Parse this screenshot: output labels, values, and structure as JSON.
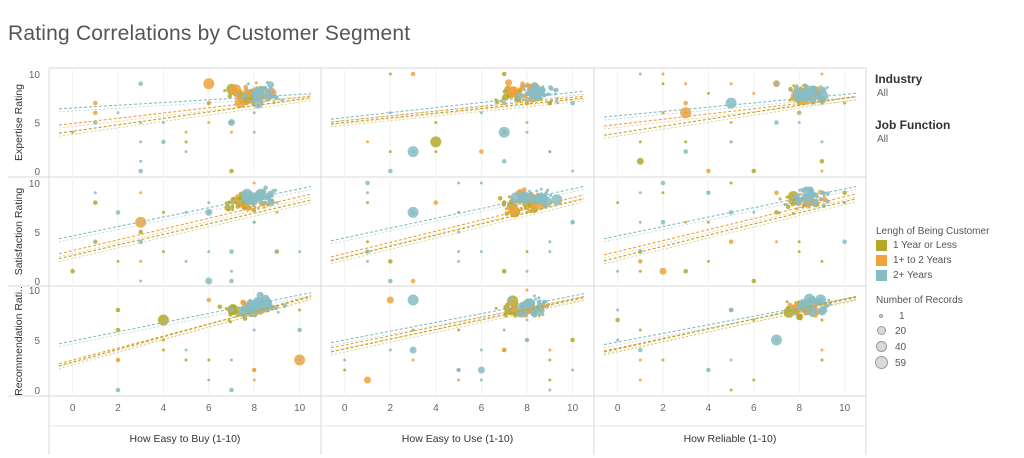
{
  "title": "Rating Correlations by Customer Segment",
  "filters": [
    {
      "label": "Industry",
      "value": "All"
    },
    {
      "label": "Job Function",
      "value": "All"
    }
  ],
  "legend_color": {
    "title": "Lengh of Being Customer",
    "items": [
      {
        "label": "1 Year or Less",
        "color": "#b5a82a"
      },
      {
        "label": "1+ to 2 Years",
        "color": "#f0a23b"
      },
      {
        "label": "2+ Years",
        "color": "#86bcc4"
      }
    ]
  },
  "legend_size": {
    "title": "Number of Records",
    "items": [
      {
        "label": "1",
        "value": 1
      },
      {
        "label": "20",
        "value": 20
      },
      {
        "label": "40",
        "value": 40
      },
      {
        "label": "59",
        "value": 59
      }
    ]
  },
  "chart_data": {
    "type": "scatter",
    "columns": [
      "How Easy to Buy (1-10)",
      "How Easy to Use (1-10)",
      "How Reliable (1-10)"
    ],
    "rows": [
      "Expertise Rating",
      "Satisfaction Rating",
      "Recommendation Rati.."
    ],
    "x_ticks": [
      "0",
      "2",
      "4",
      "6",
      "8",
      "10"
    ],
    "y_ticks": [
      "0",
      "5",
      "10"
    ],
    "xlim": [
      -0.6,
      10.5
    ],
    "ylim": [
      -0.3,
      10.3
    ],
    "series": [
      "1 Year or Less",
      "1+ to 2 Years",
      "2+ Years"
    ],
    "trend_lines": [
      [
        {
          "series": "2+ Years",
          "y_at_0": 6.5,
          "y_at_10": 7.9
        },
        {
          "series": "1+ to 2 Years",
          "y_at_0": 4.9,
          "y_at_10": 7.6
        },
        {
          "series": "1 Year or Less",
          "y_at_0": 4.1,
          "y_at_10": 7.4
        }
      ],
      [
        {
          "series": "2+ Years",
          "y_at_0": 5.5,
          "y_at_10": 8.1
        },
        {
          "series": "1+ to 2 Years",
          "y_at_0": 5.2,
          "y_at_10": 7.6
        },
        {
          "series": "1 Year or Less",
          "y_at_0": 5.0,
          "y_at_10": 7.4
        }
      ],
      [
        {
          "series": "2+ Years",
          "y_at_0": 5.7,
          "y_at_10": 7.9
        },
        {
          "series": "1+ to 2 Years",
          "y_at_0": 4.8,
          "y_at_10": 7.5
        },
        {
          "series": "1 Year or Less",
          "y_at_0": 3.9,
          "y_at_10": 7.5
        }
      ],
      [
        {
          "series": "2+ Years",
          "y_at_0": 4.6,
          "y_at_10": 9.4
        },
        {
          "series": "1+ to 2 Years",
          "y_at_0": 3.1,
          "y_at_10": 8.6
        },
        {
          "series": "1 Year or Less",
          "y_at_0": 2.6,
          "y_at_10": 8.0
        }
      ],
      [
        {
          "series": "2+ Years",
          "y_at_0": 4.4,
          "y_at_10": 9.4
        },
        {
          "series": "1+ to 2 Years",
          "y_at_0": 2.8,
          "y_at_10": 8.5
        },
        {
          "series": "1 Year or Less",
          "y_at_0": 2.4,
          "y_at_10": 8.1
        }
      ],
      [
        {
          "series": "2+ Years",
          "y_at_0": 4.6,
          "y_at_10": 9.4
        },
        {
          "series": "1+ to 2 Years",
          "y_at_0": 3.0,
          "y_at_10": 8.6
        },
        {
          "series": "1 Year or Less",
          "y_at_0": 2.4,
          "y_at_10": 8.1
        }
      ],
      [
        {
          "series": "2+ Years",
          "y_at_0": 4.9,
          "y_at_10": 9.5
        },
        {
          "series": "1+ to 2 Years",
          "y_at_0": 3.0,
          "y_at_10": 9.0
        },
        {
          "series": "1 Year or Less",
          "y_at_0": 2.8,
          "y_at_10": 9.1
        }
      ],
      [
        {
          "series": "2+ Years",
          "y_at_0": 5.0,
          "y_at_10": 9.4
        },
        {
          "series": "1+ to 2 Years",
          "y_at_0": 4.5,
          "y_at_10": 9.1
        },
        {
          "series": "1 Year or Less",
          "y_at_0": 4.1,
          "y_at_10": 9.0
        }
      ],
      [
        {
          "series": "2+ Years",
          "y_at_0": 4.8,
          "y_at_10": 9.1
        },
        {
          "series": "1+ to 2 Years",
          "y_at_0": 4.2,
          "y_at_10": 9.0
        },
        {
          "series": "1 Year or Less",
          "y_at_0": 4.1,
          "y_at_10": 9.1
        }
      ]
    ],
    "cluster_centers": [
      [
        {
          "x": 7.6,
          "y": 7.7
        },
        {
          "x": 8.0,
          "y": 7.9
        },
        {
          "x": 8.3,
          "y": 8.0
        }
      ],
      [
        {
          "x": 7.6,
          "y": 7.8
        },
        {
          "x": 8.0,
          "y": 8.2
        },
        {
          "x": 8.5,
          "y": 8.1
        }
      ],
      [
        {
          "x": 8.0,
          "y": 7.8
        },
        {
          "x": 8.3,
          "y": 7.9
        },
        {
          "x": 8.5,
          "y": 8.0
        }
      ],
      [
        {
          "x": 7.4,
          "y": 8.0
        },
        {
          "x": 7.9,
          "y": 8.3
        },
        {
          "x": 8.3,
          "y": 8.6
        }
      ],
      [
        {
          "x": 7.6,
          "y": 7.8
        },
        {
          "x": 8.0,
          "y": 8.3
        },
        {
          "x": 8.4,
          "y": 8.6
        }
      ],
      [
        {
          "x": 8.0,
          "y": 7.9
        },
        {
          "x": 8.3,
          "y": 8.3
        },
        {
          "x": 8.5,
          "y": 8.6
        }
      ],
      [
        {
          "x": 7.4,
          "y": 8.0
        },
        {
          "x": 7.9,
          "y": 8.3
        },
        {
          "x": 8.3,
          "y": 8.4
        }
      ],
      [
        {
          "x": 7.6,
          "y": 7.9
        },
        {
          "x": 8.0,
          "y": 8.2
        },
        {
          "x": 8.3,
          "y": 8.4
        }
      ],
      [
        {
          "x": 8.0,
          "y": 8.0
        },
        {
          "x": 8.3,
          "y": 8.2
        },
        {
          "x": 8.6,
          "y": 8.4
        }
      ]
    ],
    "grid": false
  }
}
